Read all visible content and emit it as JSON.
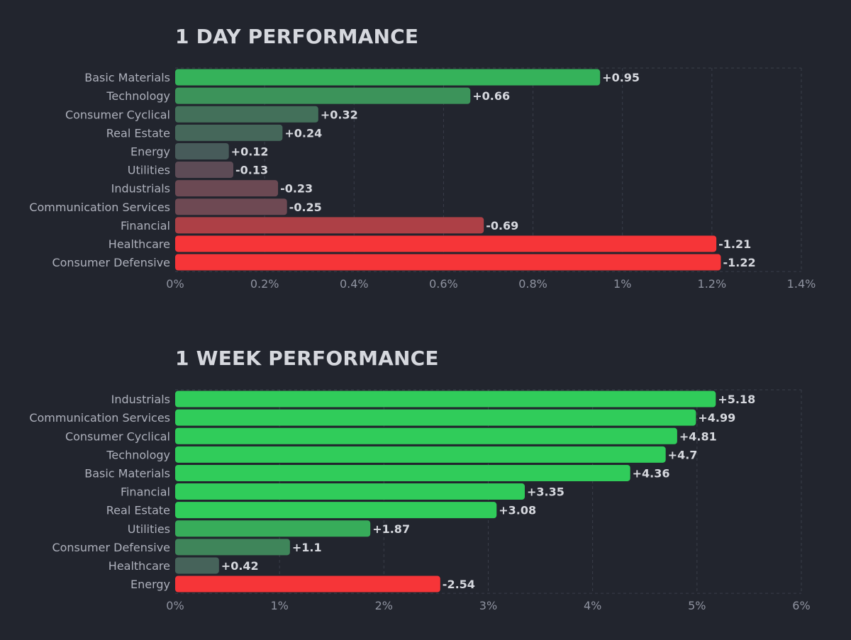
{
  "colors": {
    "background": "#22252e",
    "grid": "#3a3e4a",
    "text": "#aeb1bc",
    "title": "#d6d8de",
    "neutral": "#4a4e5a",
    "positive": "#30cc5a",
    "negative": "#f63538"
  },
  "chart_data": [
    {
      "type": "bar",
      "orientation": "horizontal",
      "title": "1 DAY PERFORMANCE",
      "xlabel": "",
      "ylabel": "",
      "categories": [
        "Basic Materials",
        "Technology",
        "Consumer Cyclical",
        "Real Estate",
        "Energy",
        "Utilities",
        "Industrials",
        "Communication Services",
        "Financial",
        "Healthcare",
        "Consumer Defensive"
      ],
      "values": [
        0.95,
        0.66,
        0.32,
        0.24,
        0.12,
        -0.13,
        -0.23,
        -0.25,
        -0.69,
        -1.21,
        -1.22
      ],
      "value_labels": [
        "+0.95",
        "+0.66",
        "+0.32",
        "+0.24",
        "+0.12",
        "-0.13",
        "-0.23",
        "-0.25",
        "-0.69",
        "-1.21",
        "-1.22"
      ],
      "bar_length": "absolute value",
      "xlim": [
        0,
        1.4
      ],
      "xticks": [
        "0%",
        "0.2%",
        "0.4%",
        "0.6%",
        "0.8%",
        "1%",
        "1.2%",
        "1.4%"
      ],
      "color_scale_max": 1.2,
      "grid": true,
      "legend": "none"
    },
    {
      "type": "bar",
      "orientation": "horizontal",
      "title": "1 WEEK PERFORMANCE",
      "xlabel": "",
      "ylabel": "",
      "categories": [
        "Industrials",
        "Communication Services",
        "Consumer Cyclical",
        "Technology",
        "Basic Materials",
        "Financial",
        "Real Estate",
        "Utilities",
        "Consumer Defensive",
        "Healthcare",
        "Energy"
      ],
      "values": [
        5.18,
        4.99,
        4.81,
        4.7,
        4.36,
        3.35,
        3.08,
        1.87,
        1.1,
        0.42,
        -2.54
      ],
      "value_labels": [
        "+5.18",
        "+4.99",
        "+4.81",
        "+4.7",
        "+4.36",
        "+3.35",
        "+3.08",
        "+1.87",
        "+1.1",
        "+0.42",
        "-2.54"
      ],
      "bar_length": "absolute value",
      "xlim": [
        0,
        6
      ],
      "xticks": [
        "0%",
        "1%",
        "2%",
        "3%",
        "4%",
        "5%",
        "6%"
      ],
      "color_scale_max": 2.5,
      "grid": true,
      "legend": "none"
    }
  ]
}
